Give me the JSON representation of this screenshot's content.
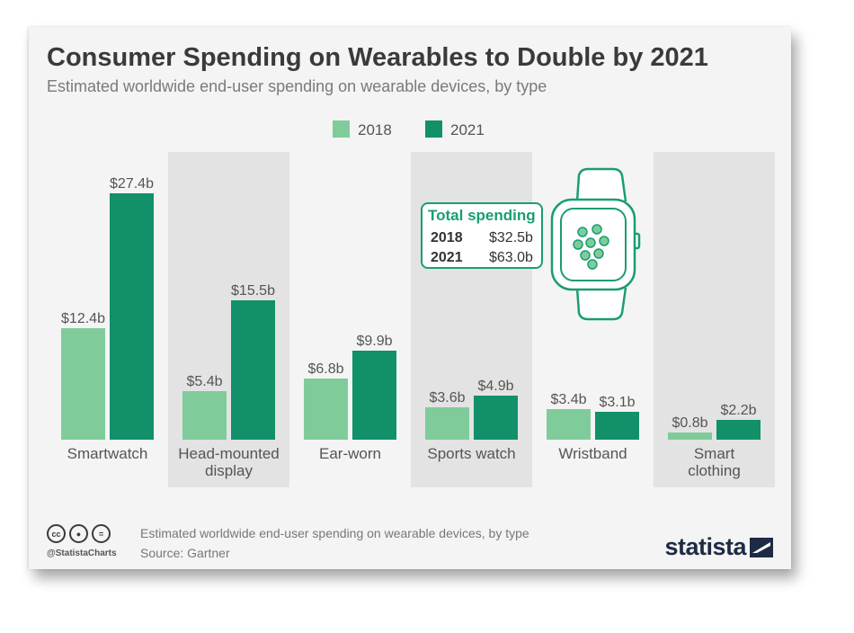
{
  "header": {
    "title": "Consumer Spending on Wearables to Double by 2021",
    "subtitle": "Estimated worldwide end-user spending on wearable devices, by type"
  },
  "colors": {
    "series_2018": "#7fcc9a",
    "series_2021": "#11906a",
    "shade": "#e3e3e3",
    "accent": "#1a9d74",
    "brand": "#1e2b46"
  },
  "chart_data": {
    "type": "bar",
    "title": "Consumer Spending on Wearables to Double by 2021",
    "subtitle": "Estimated worldwide end-user spending on wearable devices, by type",
    "xlabel": "",
    "ylabel": "",
    "ylim": [
      0,
      30
    ],
    "grid": false,
    "legend_position": "top-center",
    "unit": "billion USD",
    "categories": [
      "Smartwatch",
      "Head-mounted display",
      "Ear-worn",
      "Sports watch",
      "Wristband",
      "Smart clothing"
    ],
    "category_lines": [
      [
        "Smartwatch"
      ],
      [
        "Head-mounted",
        "display"
      ],
      [
        "Ear-worn"
      ],
      [
        "Sports watch"
      ],
      [
        "Wristband"
      ],
      [
        "Smart",
        "clothing"
      ]
    ],
    "shaded_categories": [
      1,
      3,
      5
    ],
    "series": [
      {
        "name": "2018",
        "values": [
          12.4,
          5.4,
          6.8,
          3.6,
          3.4,
          0.8
        ],
        "labels": [
          "$12.4b",
          "$5.4b",
          "$6.8b",
          "$3.6b",
          "$3.4b",
          "$0.8b"
        ]
      },
      {
        "name": "2021",
        "values": [
          27.4,
          15.5,
          9.9,
          4.9,
          3.1,
          2.2
        ],
        "labels": [
          "$27.4b",
          "$15.5b",
          "$9.9b",
          "$4.9b",
          "$3.1b",
          "$2.2b"
        ]
      }
    ],
    "annotation": {
      "title": "Total spending",
      "rows": [
        {
          "year": "2018",
          "value": "$32.5b"
        },
        {
          "year": "2021",
          "value": "$63.0b"
        }
      ]
    }
  },
  "footer": {
    "description": "Estimated worldwide end-user spending on wearable devices, by type",
    "source": "Source: Gartner",
    "handle": "@StatistaCharts",
    "brand": "statista",
    "license_icons": [
      "cc-icon",
      "by-icon",
      "nd-icon"
    ]
  }
}
